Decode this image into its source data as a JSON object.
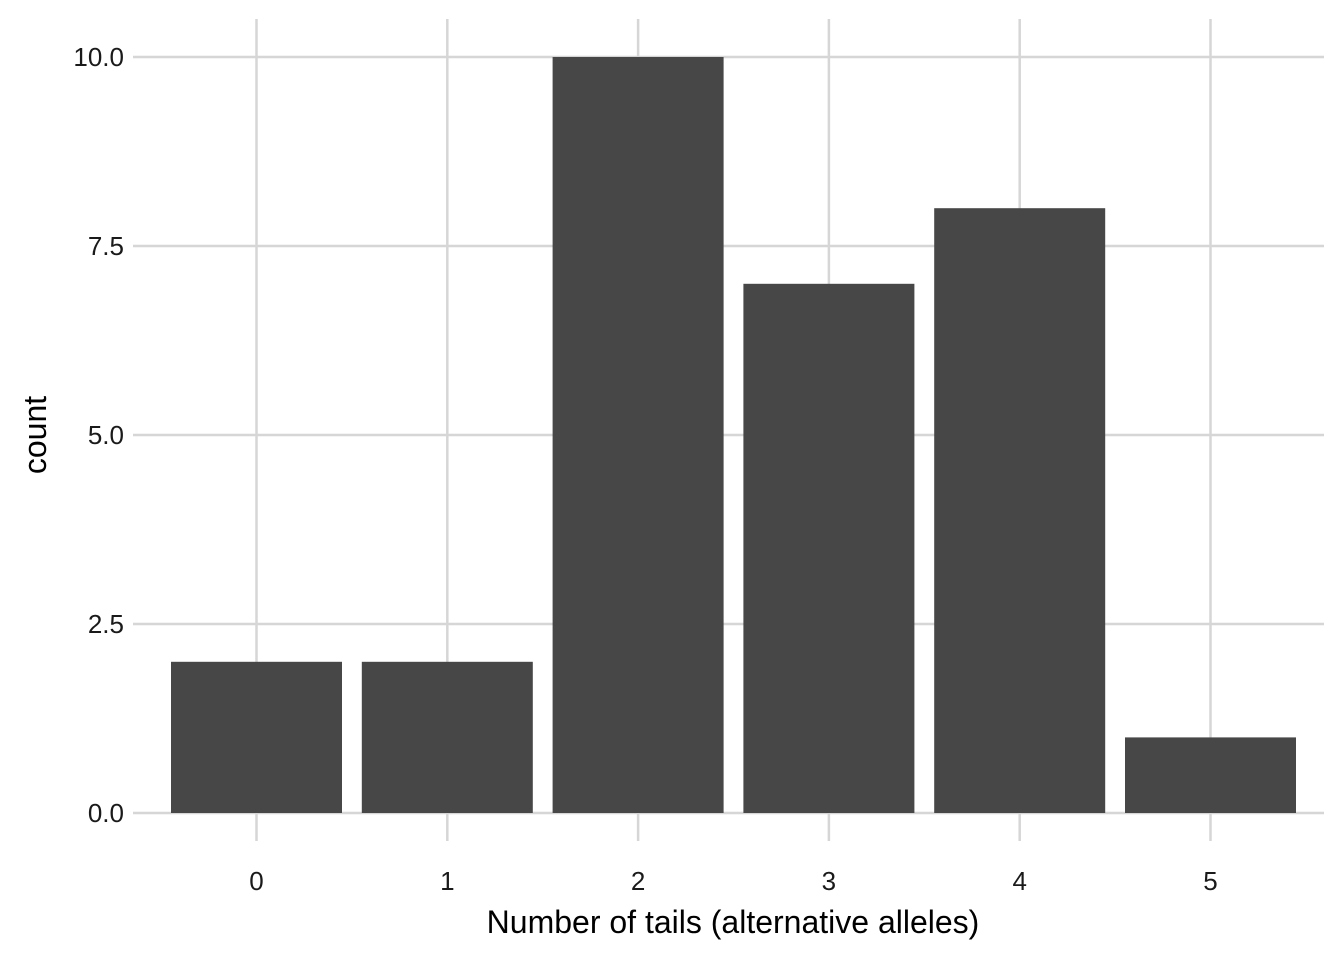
{
  "chart_data": {
    "type": "bar",
    "categories": [
      "0",
      "1",
      "2",
      "3",
      "4",
      "5"
    ],
    "values": [
      2,
      2,
      10,
      7,
      8,
      1
    ],
    "title": "",
    "xlabel": "Number of tails (alternative alleles)",
    "ylabel": "count",
    "ylim": [
      0,
      10
    ],
    "yticks": [
      "0.0",
      "2.5",
      "5.0",
      "7.5",
      "10.0"
    ],
    "grid": true,
    "bar_color": "#474747",
    "grid_color": "#d6d6d6"
  }
}
